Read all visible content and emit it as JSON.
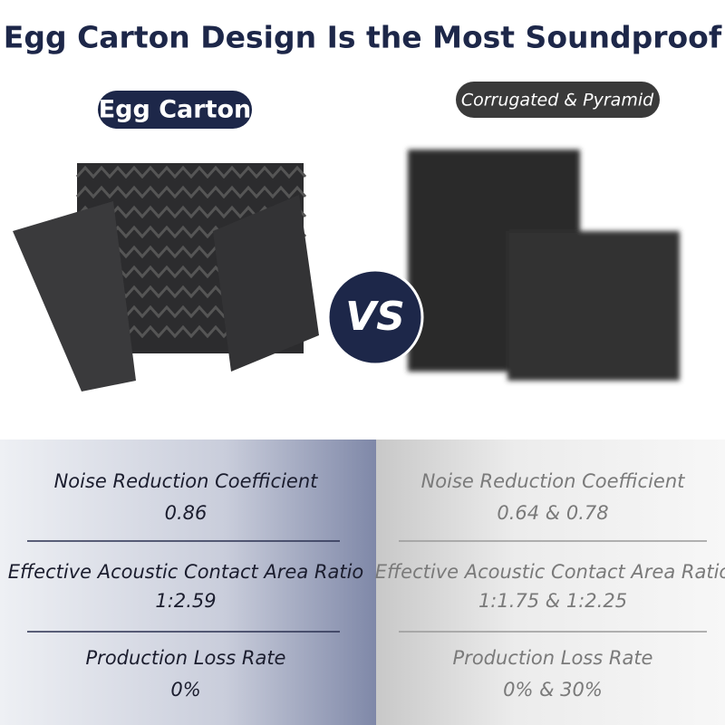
{
  "header": {
    "title": "Egg Carton Design Is the Most Soundproof"
  },
  "products": {
    "left": "Egg Carton",
    "versus": "VS",
    "right": "Corrugated & Pyramid"
  },
  "table": {
    "rows": [
      {
        "label": "Noise Reduction Coefficient",
        "left": "0.86",
        "right": "0.64 & 0.78"
      },
      {
        "label": "Effective Acoustic Contact Area Ratio",
        "left": "1:2.59",
        "right": "1:1.75 & 1:2.25"
      },
      {
        "label": "Production Loss Rate",
        "left": "0%",
        "right": "0% & 30%"
      }
    ]
  }
}
